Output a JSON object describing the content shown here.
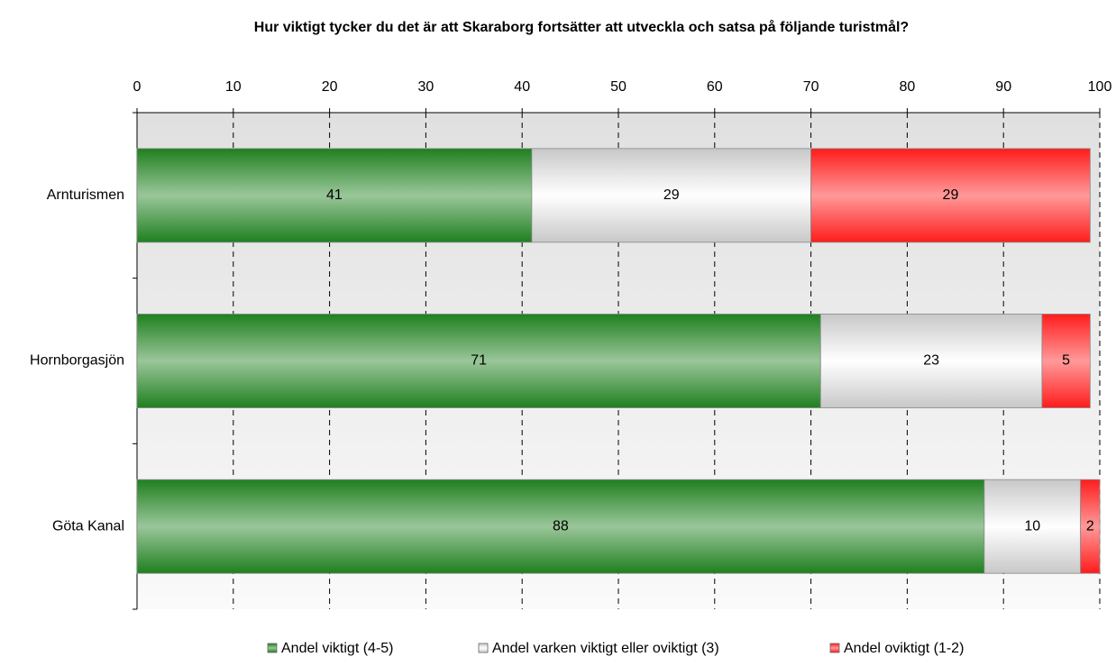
{
  "chart_data": {
    "type": "stacked_barh",
    "title": "Hur viktigt tycker du det är att Skaraborg fortsätter att utveckla och satsa på följande turistmål?",
    "categories": [
      "Arnturismen",
      "Hornborgasjön",
      "Göta Kanal"
    ],
    "series": [
      {
        "name": "Andel viktigt (4-5)",
        "color": "#1f801f",
        "values": [
          41,
          71,
          88
        ]
      },
      {
        "name": "Andel varken viktigt eller oviktigt (3)",
        "color": "#c8c8c8",
        "values": [
          29,
          23,
          10
        ]
      },
      {
        "name": "Andel oviktigt (1-2)",
        "color": "#ff1c1c",
        "values": [
          29,
          5,
          2
        ]
      }
    ],
    "xlim": [
      0,
      100
    ],
    "xticks": [
      0,
      10,
      20,
      30,
      40,
      50,
      60,
      70,
      80,
      90,
      100
    ],
    "grid": true,
    "legend": "bottom"
  }
}
